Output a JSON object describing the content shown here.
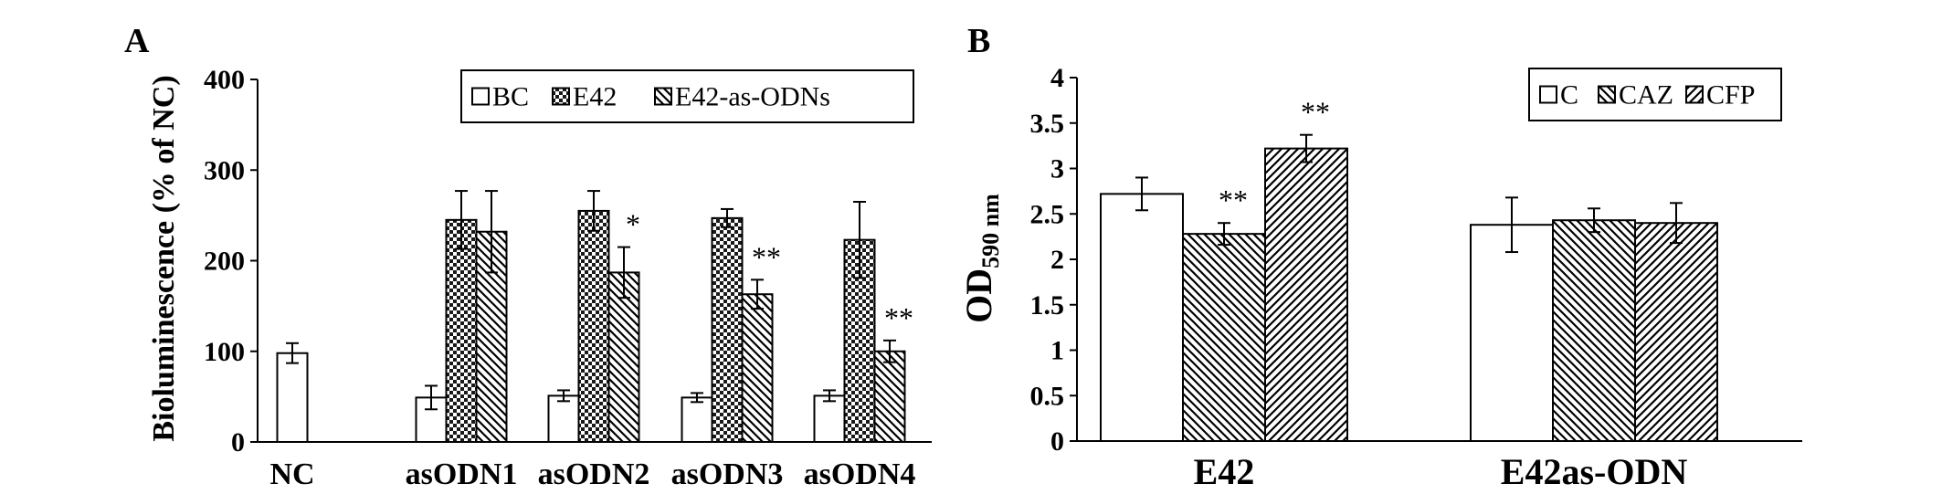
{
  "chart_data": [
    {
      "type": "bar",
      "panel_label": "A",
      "ylabel": "Bioluminescence (% of NC)",
      "ylim": [
        0,
        400
      ],
      "yticks": [
        0,
        100,
        200,
        300,
        400
      ],
      "categories": [
        "NC",
        "asODN1",
        "asODN2",
        "asODN3",
        "asODN4"
      ],
      "series": [
        {
          "name": "BC",
          "pattern": "white",
          "values": [
            98,
            49,
            51,
            49,
            51
          ],
          "errors": [
            11,
            13,
            6,
            5,
            6
          ]
        },
        {
          "name": "E42",
          "pattern": "checker",
          "values": [
            null,
            245,
            255,
            247,
            223
          ],
          "errors": [
            null,
            32,
            22,
            10,
            42
          ]
        },
        {
          "name": "E42-as-ODNs",
          "pattern": "diag-back",
          "values": [
            null,
            232,
            187,
            163,
            100
          ],
          "errors": [
            null,
            45,
            28,
            16,
            12
          ]
        }
      ],
      "annotations": [
        {
          "category": "asODN2",
          "series": "E42-as-ODNs",
          "text": "*"
        },
        {
          "category": "asODN3",
          "series": "E42-as-ODNs",
          "text": "**"
        },
        {
          "category": "asODN4",
          "series": "E42-as-ODNs",
          "text": "**"
        }
      ],
      "legend": "top-right",
      "grid": false
    },
    {
      "type": "bar",
      "panel_label": "B",
      "ylabel_main": "OD",
      "ylabel_sub": "590 nm",
      "ylim": [
        0,
        4
      ],
      "yticks": [
        "0",
        "0.5",
        "1",
        "1.5",
        "2",
        "2.5",
        "3",
        "3.5",
        "4"
      ],
      "categories": [
        "E42",
        "E42as-ODN"
      ],
      "series": [
        {
          "name": "C",
          "pattern": "white",
          "values": [
            2.72,
            2.38
          ],
          "errors": [
            0.18,
            0.3
          ]
        },
        {
          "name": "CAZ",
          "pattern": "diag-back",
          "values": [
            2.28,
            2.43
          ],
          "errors": [
            0.12,
            0.13
          ]
        },
        {
          "name": "CFP",
          "pattern": "diag-fwd",
          "values": [
            3.22,
            2.4
          ],
          "errors": [
            0.15,
            0.22
          ]
        }
      ],
      "annotations": [
        {
          "category": "E42",
          "series": "CAZ",
          "text": "**"
        },
        {
          "category": "E42",
          "series": "CFP",
          "text": "**"
        }
      ],
      "legend": "top-right",
      "grid": false
    }
  ]
}
